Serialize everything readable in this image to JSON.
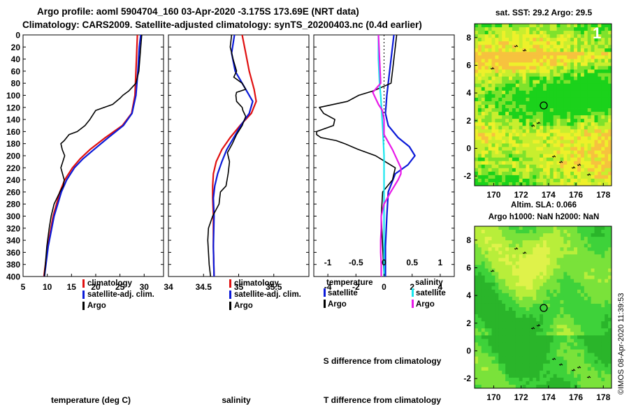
{
  "header": {
    "line1": "Argo profile: aoml 5904704_160 03-Apr-2020 -3.175S 173.69E (NRT data)",
    "line2": "Climatology: CARS2009. Satellite-adjusted climatology: synTS_20200403.nc (0.4d earlier)"
  },
  "colors": {
    "red": "#e01010",
    "blue": "#0b1ad8",
    "black": "#000000",
    "cyan": "#19e6ee",
    "magenta": "#e81ae8"
  },
  "depth_ticks": [
    "0",
    "20",
    "40",
    "60",
    "80",
    "100",
    "120",
    "140",
    "160",
    "180",
    "200",
    "220",
    "240",
    "260",
    "280",
    "300",
    "320",
    "340",
    "360",
    "380",
    "400"
  ],
  "chart_data": [
    {
      "id": "temperature",
      "type": "line",
      "xlabel": "temperature (deg C)",
      "ylabel": "depth",
      "xlim": [
        5,
        34
      ],
      "ylim": [
        400,
        0
      ],
      "xticks": [
        5,
        10,
        15,
        20,
        25,
        30
      ],
      "xtick_labels": [
        "5",
        "10",
        "15",
        "20",
        "25",
        "30"
      ],
      "legend": [
        "climatology",
        "satellite-adj. clim.",
        "Argo"
      ],
      "series": [
        {
          "name": "climatology",
          "color": "red",
          "depth": [
            0,
            20,
            60,
            100,
            130,
            150,
            170,
            190,
            205,
            220,
            240,
            260,
            300,
            350,
            400
          ],
          "values": [
            28.6,
            28.5,
            28.3,
            28.1,
            27.4,
            25.5,
            22.0,
            18.8,
            16.8,
            15.2,
            13.6,
            12.6,
            11.2,
            10.1,
            9.3
          ]
        },
        {
          "name": "satellite-adj. clim.",
          "color": "blue",
          "depth": [
            0,
            20,
            60,
            100,
            130,
            150,
            170,
            190,
            205,
            220,
            240,
            260,
            300,
            350,
            400
          ],
          "values": [
            29.3,
            29.0,
            28.7,
            28.3,
            27.5,
            25.7,
            22.6,
            19.6,
            17.4,
            15.6,
            14.0,
            12.9,
            11.4,
            10.2,
            9.4
          ]
        },
        {
          "name": "Argo",
          "color": "black",
          "depth": [
            0,
            20,
            60,
            80,
            93,
            100,
            105,
            115,
            125,
            140,
            150,
            160,
            165,
            175,
            180,
            190,
            200,
            210,
            220,
            240,
            250,
            260,
            280,
            300,
            320,
            350,
            400
          ],
          "values": [
            29.5,
            29.3,
            28.9,
            28.3,
            26.8,
            25.6,
            25.0,
            23.5,
            20.0,
            18.8,
            17.8,
            16.2,
            14.5,
            13.5,
            12.8,
            13.1,
            13.6,
            13.2,
            12.8,
            13.5,
            13.3,
            12.6,
            11.4,
            10.8,
            10.4,
            9.9,
            9.4
          ]
        }
      ]
    },
    {
      "id": "salinity",
      "type": "line",
      "xlabel": "salinity",
      "ylabel": "depth",
      "xlim": [
        34.0,
        36.0
      ],
      "ylim": [
        400,
        0
      ],
      "xticks": [
        34,
        34.5,
        35,
        35.5
      ],
      "xtick_labels": [
        "34",
        "34.5",
        "35",
        "35.5"
      ],
      "legend": [
        "climatology",
        "satellite-adj. clim.",
        "Argo"
      ],
      "series": [
        {
          "name": "climatology",
          "color": "red",
          "depth": [
            0,
            30,
            60,
            90,
            110,
            130,
            150,
            170,
            190,
            210,
            230,
            250,
            270,
            300,
            350,
            400
          ],
          "values": [
            35.05,
            35.1,
            35.15,
            35.22,
            35.25,
            35.18,
            35.02,
            34.88,
            34.76,
            34.68,
            34.64,
            34.63,
            34.63,
            34.64,
            34.64,
            34.65
          ]
        },
        {
          "name": "satellite-adj. clim.",
          "color": "blue",
          "depth": [
            0,
            30,
            60,
            90,
            110,
            130,
            150,
            170,
            190,
            210,
            230,
            250,
            270,
            300,
            350,
            400
          ],
          "values": [
            34.94,
            34.9,
            34.95,
            35.1,
            35.2,
            35.15,
            35.03,
            34.93,
            34.83,
            34.76,
            34.7,
            34.66,
            34.64,
            34.65,
            34.64,
            34.65
          ]
        },
        {
          "name": "Argo",
          "color": "black",
          "depth": [
            0,
            20,
            40,
            60,
            70,
            80,
            90,
            95,
            100,
            110,
            120,
            125,
            135,
            150,
            165,
            180,
            195,
            210,
            230,
            250,
            260,
            280,
            300,
            320,
            340,
            360,
            380,
            400
          ],
          "values": [
            34.9,
            34.88,
            34.92,
            34.97,
            34.93,
            35.05,
            35.1,
            34.97,
            34.96,
            34.97,
            35.05,
            35.06,
            35.1,
            35.05,
            34.97,
            34.91,
            34.84,
            34.87,
            34.85,
            34.82,
            34.74,
            34.72,
            34.63,
            34.57,
            34.56,
            34.57,
            34.58,
            34.6
          ]
        }
      ]
    },
    {
      "id": "difference",
      "type": "line",
      "xlabel": "T difference from climatology",
      "xlabel_top": "S difference from climatology",
      "ylabel": "depth",
      "xlim": [
        -5,
        5
      ],
      "ylim": [
        400,
        0
      ],
      "xticks": [
        -4,
        -2,
        0,
        2,
        4
      ],
      "xtick_labels": [
        "-4",
        "-2",
        "0",
        "2",
        "4"
      ],
      "s_xticks": [
        -1,
        -0.5,
        0,
        0.5,
        1
      ],
      "s_xtick_labels": [
        "-1",
        "-0.5",
        "0",
        "0.5",
        "1"
      ],
      "legend_left_title": "temperature",
      "legend_right_title": "salinity",
      "legend": [
        "satellite",
        "Argo",
        "satellite",
        "Argo"
      ],
      "series": [
        {
          "name": "temperature satellite",
          "color": "blue",
          "depth": [
            0,
            60,
            100,
            130,
            150,
            170,
            185,
            200,
            215,
            230,
            260,
            300,
            350,
            400
          ],
          "values": [
            0.7,
            0.4,
            0.2,
            0.1,
            0.3,
            1.0,
            1.8,
            2.2,
            1.7,
            0.8,
            0.3,
            0.2,
            0.1,
            0.1
          ]
        },
        {
          "name": "temperature Argo",
          "color": "black",
          "depth": [
            0,
            20,
            40,
            60,
            80,
            93,
            100,
            110,
            120,
            130,
            140,
            150,
            160,
            165,
            170,
            175,
            180,
            190,
            200,
            210,
            220,
            240,
            260,
            300,
            350,
            400
          ],
          "values": [
            0.9,
            0.8,
            0.7,
            0.6,
            0.5,
            -0.8,
            -1.8,
            -2.6,
            -4.6,
            -4.3,
            -3.5,
            -3.6,
            -4.8,
            -4.8,
            -4.5,
            -3.4,
            -2.8,
            -1.8,
            -0.6,
            0.1,
            0.8,
            0.6,
            -0.1,
            -0.2,
            -0.1,
            0.0
          ]
        },
        {
          "name": "salinity satellite",
          "color": "cyan",
          "depth": [
            0,
            40,
            80,
            100,
            130,
            160,
            200,
            250,
            300,
            350,
            400
          ],
          "values": [
            -0.1,
            -0.1,
            -0.08,
            -0.06,
            -0.04,
            -0.02,
            0.0,
            0.0,
            0.0,
            0.0,
            0.0
          ]
        },
        {
          "name": "salinity Argo",
          "color": "magenta",
          "depth": [
            0,
            40,
            80,
            95,
            105,
            115,
            125,
            140,
            165,
            190,
            210,
            220,
            230,
            240,
            260,
            280,
            300,
            320,
            340,
            360,
            380,
            400
          ],
          "values": [
            -0.1,
            -0.08,
            -0.06,
            -0.2,
            -0.15,
            -0.1,
            -0.03,
            0.0,
            0.0,
            0.15,
            0.25,
            0.3,
            0.3,
            0.25,
            0.12,
            0.0,
            -0.05,
            -0.05,
            -0.06,
            -0.06,
            -0.05,
            -0.05
          ]
        }
      ]
    },
    {
      "id": "sst_map",
      "type": "heatmap",
      "title": "sat. SST: 29.2 Argo: 29.5",
      "xlim": [
        168.6,
        178.6
      ],
      "ylim": [
        -2.7,
        9.0
      ],
      "xticks": [
        170,
        172,
        174,
        176,
        178
      ],
      "xtick_labels": [
        "170",
        "172",
        "174",
        "176",
        "178"
      ],
      "yticks": [
        -2,
        0,
        2,
        4,
        6,
        8
      ],
      "ytick_labels": [
        "-2",
        "0",
        "2",
        "4",
        "6",
        "8"
      ],
      "marker": [
        173.69,
        3.2
      ],
      "corner_label": "1",
      "colorscale": [
        "#1bd21b",
        "#7ee22c",
        "#c8ee2e",
        "#eef02a",
        "#f7c23e"
      ]
    },
    {
      "id": "sla_map",
      "type": "heatmap",
      "title": "Argo h1000: NaN h2000: NaN",
      "subtitle": "Altim. SLA: 0.066",
      "xlim": [
        168.6,
        178.6
      ],
      "ylim": [
        -2.7,
        9.0
      ],
      "xticks": [
        170,
        172,
        174,
        176,
        178
      ],
      "xtick_labels": [
        "170",
        "172",
        "174",
        "176",
        "178"
      ],
      "yticks": [
        -2,
        0,
        2,
        4,
        6,
        8
      ],
      "ytick_labels": [
        "-2",
        "0",
        "2",
        "4",
        "6",
        "8"
      ],
      "marker": [
        173.69,
        3.2
      ],
      "colorscale": [
        "#2ab52a",
        "#3ed23a",
        "#7ae23a",
        "#b8ee3a",
        "#dff24a"
      ]
    }
  ],
  "stamp": "©IMOS 08-Apr-2020 11:39:53"
}
